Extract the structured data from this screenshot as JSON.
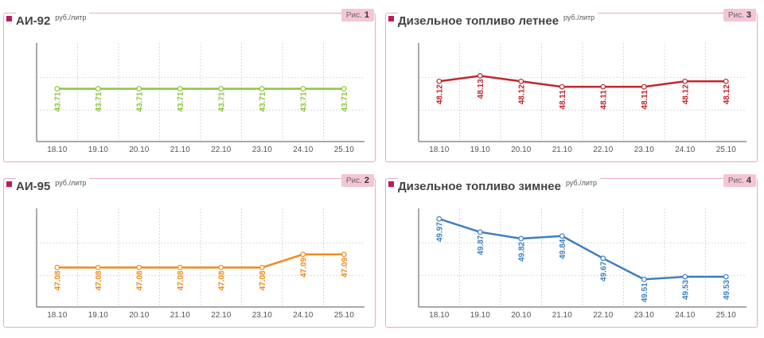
{
  "chart_data": [
    {
      "type": "line",
      "title": "АИ-92",
      "unit": "руб./литр",
      "fig_label": "Рис.",
      "fig_number": "1",
      "color": "#8cc63f",
      "categories": [
        "18.10",
        "19.10",
        "20.10",
        "21.10",
        "22.10",
        "23.10",
        "24.10",
        "25.10"
      ],
      "values": [
        43.71,
        43.71,
        43.71,
        43.71,
        43.71,
        43.71,
        43.71,
        43.71
      ],
      "labels": [
        "43.71",
        "43.71",
        "43.71",
        "43.71",
        "43.71",
        "43.71",
        "43.71",
        "43.71"
      ],
      "ylim": [
        43.56,
        43.84
      ],
      "grid": true
    },
    {
      "type": "line",
      "title": "АИ-95",
      "unit": "руб./литр",
      "fig_label": "Рис.",
      "fig_number": "2",
      "color": "#ef8a1a",
      "categories": [
        "18.10",
        "19.10",
        "20.10",
        "21.10",
        "22.10",
        "23.10",
        "24.10",
        "25.10"
      ],
      "values": [
        47.08,
        47.08,
        47.08,
        47.08,
        47.08,
        47.08,
        47.09,
        47.09
      ],
      "labels": [
        "47.08",
        "47.08",
        "47.08",
        "47.08",
        "47.08",
        "47.08",
        "47.09",
        "47.09"
      ],
      "ylim": [
        47.05,
        47.125
      ],
      "grid": true
    },
    {
      "type": "line",
      "title": "Дизельное топливо летнее",
      "unit": "руб./литр",
      "fig_label": "Рис.",
      "fig_number": "3",
      "color": "#c1272d",
      "categories": [
        "18.10",
        "19.10",
        "20.10",
        "21.10",
        "22.10",
        "23.10",
        "24.10",
        "25.10"
      ],
      "values": [
        48.12,
        48.13,
        48.12,
        48.11,
        48.11,
        48.11,
        48.12,
        48.12
      ],
      "labels": [
        "48.12",
        "48.13",
        "48.12",
        "48.11",
        "48.11",
        "48.11",
        "48.12",
        "48.12"
      ],
      "ylim": [
        48.01,
        48.19
      ],
      "grid": true
    },
    {
      "type": "line",
      "title": "Дизельное топливо зимнее",
      "unit": "руб./литр",
      "fig_label": "Рис.",
      "fig_number": "4",
      "color": "#3f7fc1",
      "categories": [
        "18.10",
        "19.10",
        "20.10",
        "21.10",
        "22.10",
        "23.10",
        "24.10",
        "25.10"
      ],
      "values": [
        49.97,
        49.87,
        49.82,
        49.84,
        49.67,
        49.51,
        49.53,
        49.53
      ],
      "labels": [
        "49.97",
        "49.87",
        "49.82",
        "49.84",
        "49.67",
        "49.51",
        "49.53",
        "49.53"
      ],
      "ylim": [
        49.3,
        50.05
      ],
      "grid": true
    }
  ]
}
